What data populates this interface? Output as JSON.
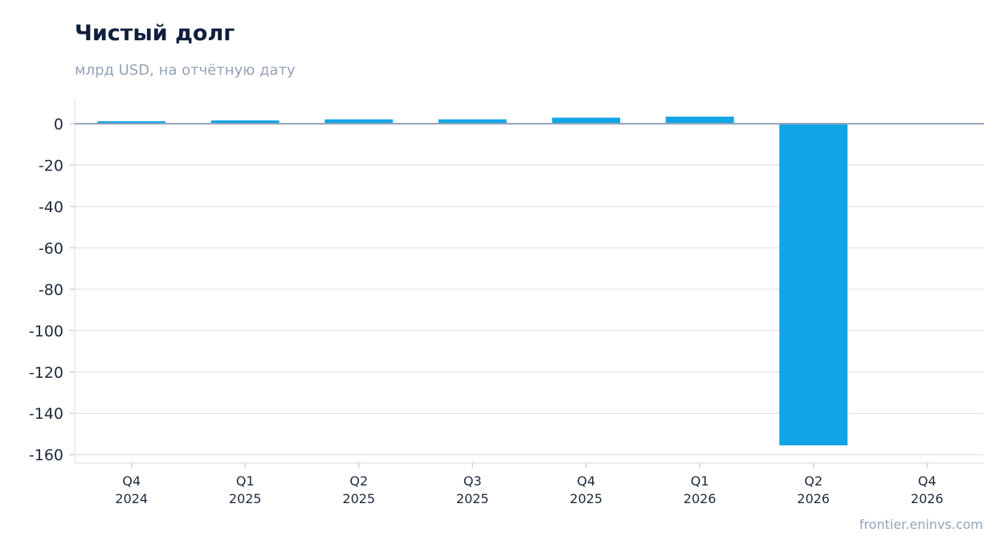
{
  "chart_data": {
    "type": "bar",
    "title": "Чистый долг",
    "subtitle": "млрд USD, на отчётную дату",
    "categories": [
      [
        "Q4",
        "2024"
      ],
      [
        "Q1",
        "2025"
      ],
      [
        "Q2",
        "2025"
      ],
      [
        "Q3",
        "2025"
      ],
      [
        "Q4",
        "2025"
      ],
      [
        "Q1",
        "2026"
      ],
      [
        "Q2",
        "2026"
      ],
      [
        "Q4",
        "2026"
      ]
    ],
    "values": [
      1.2,
      1.6,
      2.1,
      2.1,
      2.9,
      3.4,
      -155.5,
      null
    ],
    "ylim": [
      -164,
      12
    ],
    "yticks": [
      0,
      -20,
      -40,
      -60,
      -80,
      -100,
      -120,
      -140,
      -160
    ],
    "grid": true,
    "bar_color": "#10a5e6",
    "source": "frontier.eninvs.com"
  }
}
